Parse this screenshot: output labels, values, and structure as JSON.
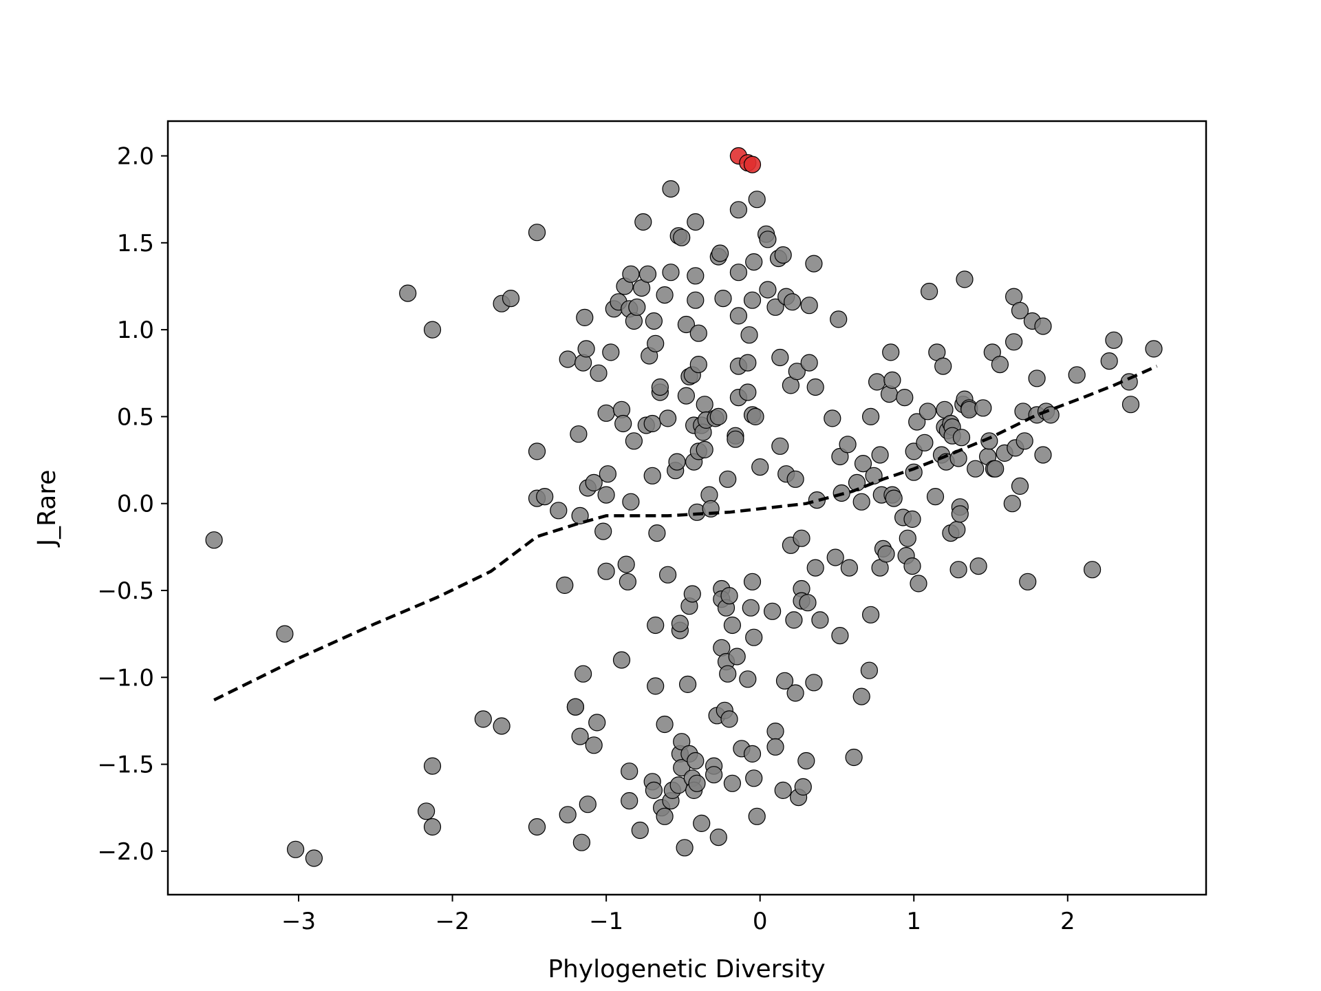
{
  "chart_data": {
    "type": "scatter",
    "title": "",
    "xlabel": "Phylogenetic Diversity",
    "ylabel": "J_Rare",
    "xlim": [
      -3.85,
      2.9
    ],
    "ylim": [
      -2.25,
      2.2
    ],
    "xticks": [
      -3,
      -2,
      -1,
      0,
      1,
      2
    ],
    "yticks": [
      -2.0,
      -1.5,
      -1.0,
      -0.5,
      0.0,
      0.5,
      1.0,
      1.5,
      2.0
    ],
    "xtick_labels": [
      "−3",
      "−2",
      "−1",
      "0",
      "1",
      "2"
    ],
    "ytick_labels": [
      "−2.0",
      "−1.5",
      "−1.0",
      "−0.5",
      "0.0",
      "0.5",
      "1.0",
      "1.5",
      "2.0"
    ],
    "grid": false,
    "colors": {
      "default_point": "#808080",
      "highlight_point": "#e03030",
      "trend_line": "#000000"
    },
    "highlight_points": [
      [
        -0.14,
        2.0
      ],
      [
        -0.08,
        1.96
      ],
      [
        -0.05,
        1.95
      ]
    ],
    "points": [
      [
        -3.55,
        -0.21
      ],
      [
        -3.09,
        -0.75
      ],
      [
        -3.02,
        -1.99
      ],
      [
        -2.9,
        -2.04
      ],
      [
        -2.29,
        1.21
      ],
      [
        -2.13,
        1.0
      ],
      [
        -2.17,
        -1.77
      ],
      [
        -2.13,
        -1.51
      ],
      [
        -2.13,
        -1.86
      ],
      [
        -1.8,
        -1.24
      ],
      [
        -1.68,
        -1.28
      ],
      [
        -1.68,
        1.15
      ],
      [
        -1.62,
        1.18
      ],
      [
        -1.45,
        1.56
      ],
      [
        -1.45,
        0.3
      ],
      [
        -1.45,
        0.03
      ],
      [
        -1.4,
        0.04
      ],
      [
        -1.31,
        -0.04
      ],
      [
        -1.27,
        -0.47
      ],
      [
        -1.25,
        0.83
      ],
      [
        -1.2,
        -1.17
      ],
      [
        -1.18,
        0.4
      ],
      [
        -1.17,
        -0.07
      ],
      [
        -1.15,
        0.81
      ],
      [
        -1.14,
        1.07
      ],
      [
        -1.13,
        0.89
      ],
      [
        -1.12,
        0.09
      ],
      [
        -1.08,
        0.12
      ],
      [
        -1.05,
        0.75
      ],
      [
        -1.02,
        -0.16
      ],
      [
        -1.0,
        0.52
      ],
      [
        -1.0,
        -0.39
      ],
      [
        -1.0,
        0.05
      ],
      [
        -0.99,
        0.17
      ],
      [
        -0.97,
        0.87
      ],
      [
        -0.95,
        1.12
      ],
      [
        -0.92,
        1.16
      ],
      [
        -0.9,
        0.54
      ],
      [
        -0.89,
        0.46
      ],
      [
        -0.88,
        1.25
      ],
      [
        -0.87,
        -0.35
      ],
      [
        -0.86,
        -0.45
      ],
      [
        -0.85,
        1.12
      ],
      [
        -0.84,
        1.32
      ],
      [
        -0.84,
        0.01
      ],
      [
        -0.82,
        0.36
      ],
      [
        -0.82,
        1.05
      ],
      [
        -0.8,
        1.13
      ],
      [
        -0.76,
        1.62
      ],
      [
        -0.77,
        1.24
      ],
      [
        -0.74,
        0.45
      ],
      [
        -0.73,
        1.32
      ],
      [
        -0.72,
        0.85
      ],
      [
        -0.7,
        0.46
      ],
      [
        -0.7,
        0.16
      ],
      [
        -0.69,
        1.05
      ],
      [
        -0.68,
        0.92
      ],
      [
        -0.67,
        -0.17
      ],
      [
        -0.65,
        0.64
      ],
      [
        -0.65,
        0.67
      ],
      [
        -0.62,
        1.2
      ],
      [
        -0.6,
        0.49
      ],
      [
        -0.6,
        -0.41
      ],
      [
        -0.58,
        1.33
      ],
      [
        -0.58,
        1.81
      ],
      [
        -0.55,
        0.19
      ],
      [
        -0.54,
        0.24
      ],
      [
        -0.53,
        1.54
      ],
      [
        -0.51,
        1.53
      ],
      [
        -0.48,
        0.62
      ],
      [
        -0.48,
        1.03
      ],
      [
        -0.46,
        0.73
      ],
      [
        -0.44,
        0.74
      ],
      [
        -0.43,
        0.24
      ],
      [
        -0.43,
        0.45
      ],
      [
        -0.42,
        1.62
      ],
      [
        -0.42,
        1.31
      ],
      [
        -0.42,
        1.17
      ],
      [
        -0.41,
        -0.05
      ],
      [
        -0.4,
        0.98
      ],
      [
        -0.4,
        0.3
      ],
      [
        -0.4,
        0.8
      ],
      [
        -0.38,
        0.45
      ],
      [
        -0.37,
        0.41
      ],
      [
        -0.36,
        0.57
      ],
      [
        -0.36,
        0.31
      ],
      [
        -0.35,
        0.48
      ],
      [
        -0.33,
        0.05
      ],
      [
        -0.32,
        -0.03
      ],
      [
        -0.29,
        0.49
      ],
      [
        -0.27,
        0.5
      ],
      [
        -0.27,
        1.42
      ],
      [
        -0.26,
        1.44
      ],
      [
        -0.24,
        1.18
      ],
      [
        -0.21,
        0.14
      ],
      [
        -0.16,
        0.39
      ],
      [
        -0.16,
        0.37
      ],
      [
        -0.14,
        1.69
      ],
      [
        -0.14,
        1.33
      ],
      [
        -0.14,
        1.08
      ],
      [
        -0.14,
        0.79
      ],
      [
        -0.14,
        0.61
      ],
      [
        -0.08,
        0.64
      ],
      [
        -0.08,
        0.81
      ],
      [
        -0.07,
        0.97
      ],
      [
        -0.05,
        1.17
      ],
      [
        -0.05,
        0.51
      ],
      [
        -0.03,
        0.5
      ],
      [
        -0.04,
        1.39
      ],
      [
        -0.02,
        1.75
      ],
      [
        0.0,
        0.21
      ],
      [
        0.04,
        1.55
      ],
      [
        0.05,
        1.23
      ],
      [
        0.05,
        1.52
      ],
      [
        0.1,
        1.13
      ],
      [
        0.12,
        1.41
      ],
      [
        0.13,
        0.33
      ],
      [
        0.13,
        0.84
      ],
      [
        0.15,
        1.43
      ],
      [
        0.17,
        0.17
      ],
      [
        0.17,
        1.19
      ],
      [
        0.2,
        0.68
      ],
      [
        0.2,
        -0.24
      ],
      [
        0.21,
        1.16
      ],
      [
        0.23,
        0.14
      ],
      [
        0.24,
        0.76
      ],
      [
        0.27,
        -0.2
      ],
      [
        0.32,
        0.81
      ],
      [
        0.32,
        1.14
      ],
      [
        0.35,
        1.38
      ],
      [
        0.36,
        -0.37
      ],
      [
        0.36,
        0.67
      ],
      [
        0.37,
        0.02
      ],
      [
        0.47,
        0.49
      ],
      [
        0.49,
        -0.31
      ],
      [
        0.51,
        1.06
      ],
      [
        0.52,
        0.27
      ],
      [
        0.53,
        0.06
      ],
      [
        0.57,
        0.34
      ],
      [
        0.58,
        -0.37
      ],
      [
        0.63,
        0.12
      ],
      [
        0.66,
        0.01
      ],
      [
        0.67,
        0.23
      ],
      [
        0.72,
        0.5
      ],
      [
        0.74,
        0.16
      ],
      [
        0.76,
        0.7
      ],
      [
        0.78,
        -0.37
      ],
      [
        0.78,
        0.28
      ],
      [
        0.79,
        0.05
      ],
      [
        0.8,
        -0.26
      ],
      [
        0.82,
        -0.29
      ],
      [
        0.84,
        0.63
      ],
      [
        0.85,
        0.87
      ],
      [
        0.86,
        0.71
      ],
      [
        0.86,
        0.05
      ],
      [
        0.87,
        0.03
      ],
      [
        0.93,
        -0.08
      ],
      [
        0.94,
        0.61
      ],
      [
        0.95,
        -0.3
      ],
      [
        0.96,
        -0.2
      ],
      [
        0.99,
        -0.36
      ],
      [
        0.99,
        -0.09
      ],
      [
        1.0,
        0.18
      ],
      [
        1.0,
        0.3
      ],
      [
        1.02,
        0.47
      ],
      [
        1.03,
        -0.46
      ],
      [
        1.07,
        0.35
      ],
      [
        1.09,
        0.53
      ],
      [
        1.1,
        1.22
      ],
      [
        1.14,
        0.04
      ],
      [
        1.15,
        0.87
      ],
      [
        1.18,
        0.28
      ],
      [
        1.19,
        0.79
      ],
      [
        1.2,
        0.54
      ],
      [
        1.2,
        0.44
      ],
      [
        1.21,
        0.24
      ],
      [
        1.22,
        0.42
      ],
      [
        1.24,
        -0.17
      ],
      [
        1.24,
        0.46
      ],
      [
        1.25,
        0.44
      ],
      [
        1.25,
        0.39
      ],
      [
        1.28,
        -0.15
      ],
      [
        1.29,
        0.26
      ],
      [
        1.29,
        -0.38
      ],
      [
        1.3,
        -0.02
      ],
      [
        1.3,
        -0.06
      ],
      [
        1.31,
        0.38
      ],
      [
        1.32,
        0.57
      ],
      [
        1.33,
        0.6
      ],
      [
        1.33,
        1.29
      ],
      [
        1.36,
        0.55
      ],
      [
        1.36,
        0.54
      ],
      [
        1.4,
        0.2
      ],
      [
        1.42,
        -0.36
      ],
      [
        1.45,
        0.55
      ],
      [
        1.48,
        0.27
      ],
      [
        1.49,
        0.36
      ],
      [
        1.51,
        0.87
      ],
      [
        1.52,
        0.2
      ],
      [
        1.53,
        0.2
      ],
      [
        1.56,
        0.8
      ],
      [
        1.59,
        0.29
      ],
      [
        1.64,
        0.0
      ],
      [
        1.65,
        1.19
      ],
      [
        1.65,
        0.93
      ],
      [
        1.66,
        0.32
      ],
      [
        1.69,
        0.1
      ],
      [
        1.69,
        1.11
      ],
      [
        1.71,
        0.53
      ],
      [
        1.72,
        0.36
      ],
      [
        1.74,
        -0.45
      ],
      [
        1.77,
        1.05
      ],
      [
        1.8,
        0.72
      ],
      [
        1.8,
        0.51
      ],
      [
        1.84,
        1.02
      ],
      [
        1.84,
        0.28
      ],
      [
        1.86,
        0.53
      ],
      [
        1.89,
        0.51
      ],
      [
        2.06,
        0.74
      ],
      [
        2.16,
        -0.38
      ],
      [
        2.27,
        0.82
      ],
      [
        2.3,
        0.94
      ],
      [
        2.4,
        0.7
      ],
      [
        2.41,
        0.57
      ],
      [
        2.56,
        0.89
      ],
      [
        -0.52,
        -0.73
      ],
      [
        -0.52,
        -0.69
      ],
      [
        -0.46,
        -0.59
      ],
      [
        -0.44,
        -0.52
      ],
      [
        -0.25,
        -0.49
      ],
      [
        -0.25,
        -0.55
      ],
      [
        -0.22,
        -0.6
      ],
      [
        -0.2,
        -0.53
      ],
      [
        -0.18,
        -0.7
      ],
      [
        -0.06,
        -0.6
      ],
      [
        -0.05,
        -0.45
      ],
      [
        -0.04,
        -0.77
      ],
      [
        0.08,
        -0.62
      ],
      [
        0.22,
        -0.67
      ],
      [
        0.27,
        -0.49
      ],
      [
        0.27,
        -0.56
      ],
      [
        0.31,
        -0.57
      ],
      [
        0.39,
        -0.67
      ],
      [
        0.52,
        -0.76
      ],
      [
        0.72,
        -0.64
      ],
      [
        0.71,
        -0.96
      ],
      [
        0.66,
        -1.11
      ],
      [
        0.61,
        -1.46
      ],
      [
        -0.9,
        -0.9
      ],
      [
        -0.68,
        -0.7
      ],
      [
        -0.68,
        -1.05
      ],
      [
        -0.47,
        -1.04
      ],
      [
        -0.25,
        -0.83
      ],
      [
        -0.22,
        -0.91
      ],
      [
        -0.21,
        -0.98
      ],
      [
        -0.15,
        -0.88
      ],
      [
        -0.08,
        -1.01
      ],
      [
        0.16,
        -1.02
      ],
      [
        0.23,
        -1.09
      ],
      [
        0.35,
        -1.03
      ],
      [
        -1.15,
        -0.98
      ],
      [
        -1.2,
        -1.17
      ],
      [
        -1.17,
        -1.34
      ],
      [
        -1.12,
        -1.73
      ],
      [
        -1.08,
        -1.39
      ],
      [
        -1.06,
        -1.26
      ],
      [
        -1.25,
        -1.79
      ],
      [
        -1.16,
        -1.95
      ],
      [
        -1.45,
        -1.86
      ],
      [
        -0.85,
        -1.54
      ],
      [
        -0.85,
        -1.71
      ],
      [
        -0.78,
        -1.88
      ],
      [
        -0.7,
        -1.6
      ],
      [
        -0.69,
        -1.65
      ],
      [
        -0.64,
        -1.75
      ],
      [
        -0.62,
        -1.27
      ],
      [
        -0.62,
        -1.8
      ],
      [
        -0.58,
        -1.71
      ],
      [
        -0.57,
        -1.65
      ],
      [
        -0.53,
        -1.62
      ],
      [
        -0.52,
        -1.44
      ],
      [
        -0.51,
        -1.37
      ],
      [
        -0.51,
        -1.52
      ],
      [
        -0.49,
        -1.98
      ],
      [
        -0.46,
        -1.44
      ],
      [
        -0.44,
        -1.58
      ],
      [
        -0.43,
        -1.65
      ],
      [
        -0.42,
        -1.48
      ],
      [
        -0.41,
        -1.61
      ],
      [
        -0.38,
        -1.84
      ],
      [
        -0.3,
        -1.51
      ],
      [
        -0.3,
        -1.56
      ],
      [
        -0.28,
        -1.22
      ],
      [
        -0.27,
        -1.92
      ],
      [
        -0.23,
        -1.19
      ],
      [
        -0.2,
        -1.24
      ],
      [
        -0.18,
        -1.61
      ],
      [
        -0.12,
        -1.41
      ],
      [
        -0.05,
        -1.44
      ],
      [
        -0.04,
        -1.58
      ],
      [
        -0.02,
        -1.8
      ],
      [
        0.1,
        -1.31
      ],
      [
        0.1,
        -1.4
      ],
      [
        0.15,
        -1.65
      ],
      [
        0.25,
        -1.69
      ],
      [
        0.28,
        -1.63
      ],
      [
        0.3,
        -1.48
      ]
    ],
    "trend_line": [
      [
        -3.55,
        -1.13
      ],
      [
        -3.0,
        -0.89
      ],
      [
        -2.5,
        -0.69
      ],
      [
        -2.1,
        -0.54
      ],
      [
        -1.75,
        -0.39
      ],
      [
        -1.45,
        -0.19
      ],
      [
        -1.2,
        -0.12
      ],
      [
        -1.0,
        -0.07
      ],
      [
        -0.8,
        -0.07
      ],
      [
        -0.6,
        -0.07
      ],
      [
        -0.4,
        -0.06
      ],
      [
        -0.2,
        -0.05
      ],
      [
        0.0,
        -0.03
      ],
      [
        0.3,
        0.0
      ],
      [
        0.6,
        0.07
      ],
      [
        0.8,
        0.14
      ],
      [
        1.0,
        0.2
      ],
      [
        1.2,
        0.27
      ],
      [
        1.5,
        0.38
      ],
      [
        1.8,
        0.51
      ],
      [
        2.1,
        0.61
      ],
      [
        2.3,
        0.68
      ],
      [
        2.58,
        0.79
      ]
    ]
  }
}
